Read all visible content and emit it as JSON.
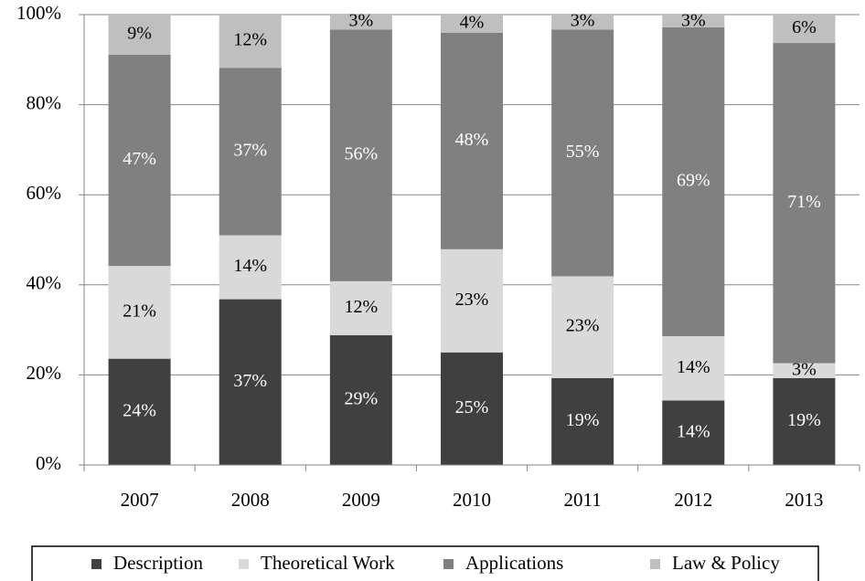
{
  "chart_data": {
    "type": "stacked_bar",
    "categories": [
      "2007",
      "2008",
      "2009",
      "2010",
      "2011",
      "2012",
      "2013"
    ],
    "series": [
      {
        "name": "Description",
        "color": "#404040",
        "values": [
          23.6,
          36.8,
          28.8,
          25.0,
          19.3,
          14.3,
          19.3
        ],
        "value_labels": [
          "24%",
          "37%",
          "29%",
          "25%",
          "19%",
          "14%",
          "19%"
        ]
      },
      {
        "name": "Theoretical Work",
        "color": "#d9d9d9",
        "values": [
          20.6,
          14.2,
          12.0,
          22.9,
          22.6,
          14.3,
          3.3
        ],
        "value_labels": [
          "21%",
          "14%",
          "12%",
          "23%",
          "23%",
          "14%",
          "3%"
        ]
      },
      {
        "name": "Applications",
        "color": "#808080",
        "values": [
          46.9,
          37.2,
          55.9,
          48.1,
          54.8,
          68.6,
          71.1
        ],
        "value_labels": [
          "47%",
          "37%",
          "56%",
          "48%",
          "55%",
          "69%",
          "71%"
        ]
      },
      {
        "name": "Law & Policy",
        "color": "#bfbfbf",
        "values": [
          8.9,
          11.8,
          3.3,
          4.0,
          3.3,
          2.8,
          6.3
        ],
        "value_labels": [
          "9%",
          "12%",
          "3%",
          "4%",
          "3%",
          "3%",
          "6%"
        ]
      }
    ],
    "ylim": [
      0,
      100
    ],
    "yticks": [
      {
        "value": 0,
        "label": "0%"
      },
      {
        "value": 20,
        "label": "20%"
      },
      {
        "value": 40,
        "label": "40%"
      },
      {
        "value": 60,
        "label": "60%"
      },
      {
        "value": 80,
        "label": "80%"
      },
      {
        "value": 100,
        "label": "100%"
      }
    ],
    "grid": true,
    "legend": "bottom"
  }
}
